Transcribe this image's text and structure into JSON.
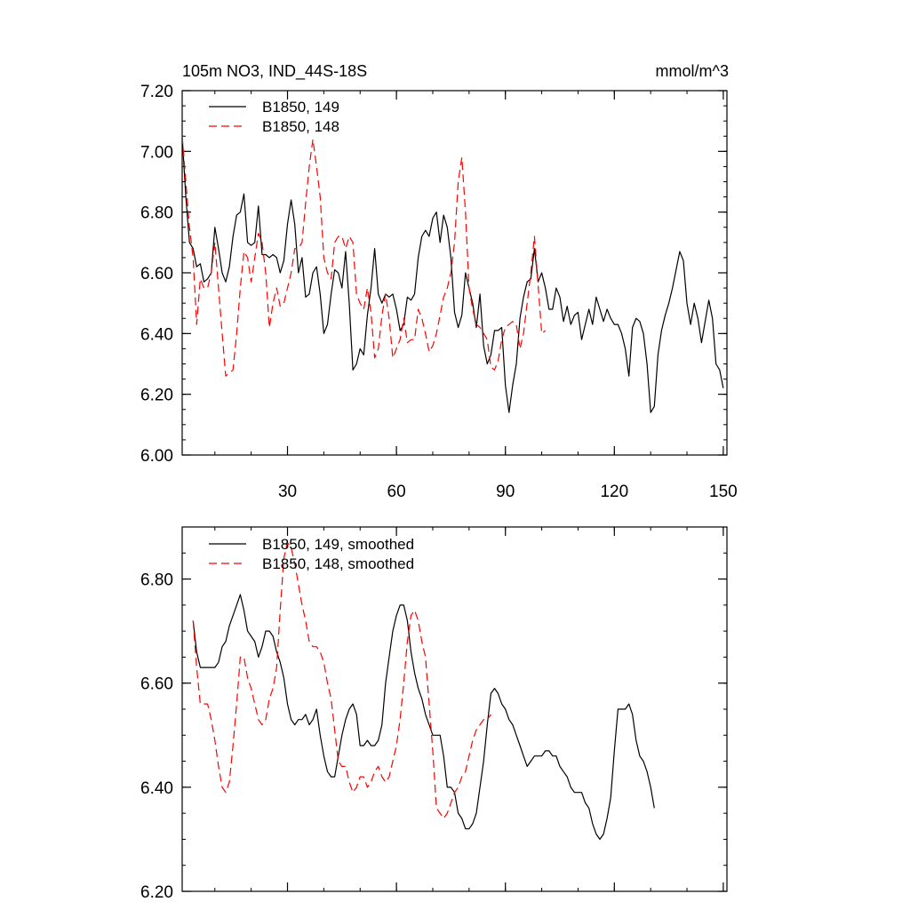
{
  "chart_data": [
    {
      "type": "line",
      "title": "105m NO3, IND_44S-18S",
      "units": "mmol/m^3",
      "xlim": [
        1,
        151
      ],
      "ylim": [
        6.0,
        7.2
      ],
      "xticks": [
        30,
        60,
        90,
        120,
        150
      ],
      "yticks": [
        6.0,
        6.2,
        6.4,
        6.6,
        6.8,
        7.0,
        7.2
      ],
      "ytick_labels": [
        "6.00",
        "6.20",
        "6.40",
        "6.60",
        "6.80",
        "7.00",
        "7.20"
      ],
      "legend": "top-left",
      "series": [
        {
          "name": "B1850, 149",
          "color": "#000000",
          "dash": "solid",
          "x_start": 1,
          "values": [
            7.05,
            6.85,
            6.7,
            6.68,
            6.62,
            6.63,
            6.57,
            6.58,
            6.6,
            6.75,
            6.68,
            6.6,
            6.57,
            6.62,
            6.72,
            6.79,
            6.8,
            6.86,
            6.7,
            6.69,
            6.7,
            6.82,
            6.66,
            6.66,
            6.65,
            6.66,
            6.65,
            6.6,
            6.64,
            6.76,
            6.84,
            6.76,
            6.6,
            6.65,
            6.52,
            6.53,
            6.6,
            6.62,
            6.53,
            6.4,
            6.43,
            6.53,
            6.61,
            6.6,
            6.55,
            6.67,
            6.5,
            6.28,
            6.3,
            6.35,
            6.33,
            6.46,
            6.55,
            6.68,
            6.53,
            6.5,
            6.53,
            6.52,
            6.53,
            6.48,
            6.41,
            6.43,
            6.52,
            6.51,
            6.53,
            6.65,
            6.72,
            6.74,
            6.72,
            6.78,
            6.8,
            6.7,
            6.79,
            6.75,
            6.65,
            6.47,
            6.42,
            6.46,
            6.6,
            6.55,
            6.5,
            6.42,
            6.53,
            6.36,
            6.3,
            6.33,
            6.41,
            6.41,
            6.42,
            6.23,
            6.14,
            6.23,
            6.3,
            6.45,
            6.52,
            6.57,
            6.58,
            6.68,
            6.57,
            6.6,
            6.55,
            6.48,
            6.48,
            6.55,
            6.52,
            6.44,
            6.49,
            6.43,
            6.46,
            6.47,
            6.38,
            6.43,
            6.48,
            6.43,
            6.52,
            6.48,
            6.44,
            6.48,
            6.45,
            6.43,
            6.43,
            6.4,
            6.35,
            6.26,
            6.42,
            6.45,
            6.44,
            6.4,
            6.3,
            6.14,
            6.16,
            6.33,
            6.41,
            6.46,
            6.5,
            6.55,
            6.61,
            6.67,
            6.64,
            6.5,
            6.43,
            6.5,
            6.45,
            6.37,
            6.44,
            6.51,
            6.45,
            6.3,
            6.28,
            6.22
          ]
        },
        {
          "name": "B1850, 148",
          "color": "#ff0000",
          "dash": "dashed",
          "x_start": 1,
          "values": [
            7.05,
            6.9,
            6.75,
            6.65,
            6.43,
            6.58,
            6.55,
            6.55,
            6.6,
            6.7,
            6.55,
            6.4,
            6.26,
            6.27,
            6.28,
            6.4,
            6.55,
            6.67,
            6.65,
            6.57,
            6.65,
            6.73,
            6.7,
            6.6,
            6.42,
            6.5,
            6.55,
            6.49,
            6.5,
            6.55,
            6.6,
            6.68,
            6.68,
            6.7,
            6.83,
            6.95,
            7.04,
            6.95,
            6.85,
            6.65,
            6.6,
            6.58,
            6.7,
            6.72,
            6.72,
            6.68,
            6.72,
            6.7,
            6.53,
            6.5,
            6.48,
            6.55,
            6.47,
            6.32,
            6.35,
            6.46,
            6.53,
            6.45,
            6.32,
            6.35,
            6.38,
            6.45,
            6.37,
            6.38,
            6.38,
            6.48,
            6.45,
            6.4,
            6.34,
            6.36,
            6.4,
            6.46,
            6.52,
            6.55,
            6.6,
            6.7,
            6.9,
            6.98,
            6.8,
            6.55,
            6.48,
            6.43,
            6.42,
            6.4,
            6.38,
            6.29,
            6.28,
            6.31,
            6.38,
            6.42,
            6.43,
            6.44,
            6.43,
            6.35,
            6.4,
            6.5,
            6.6,
            6.72,
            6.56,
            6.4,
            6.41
          ]
        }
      ]
    },
    {
      "type": "line",
      "xlim": [
        1,
        151
      ],
      "ylim": [
        6.2,
        6.9
      ],
      "xticks": [
        30,
        60,
        90,
        120,
        150
      ],
      "yticks": [
        6.2,
        6.4,
        6.6,
        6.8
      ],
      "ytick_labels": [
        "6.20",
        "6.40",
        "6.60",
        "6.80"
      ],
      "legend": "top-left",
      "series": [
        {
          "name": "B1850, 149, smoothed",
          "color": "#000000",
          "dash": "solid",
          "x_start": 4,
          "values": [
            6.72,
            6.66,
            6.63,
            6.63,
            6.63,
            6.63,
            6.63,
            6.64,
            6.67,
            6.68,
            6.71,
            6.73,
            6.75,
            6.77,
            6.74,
            6.7,
            6.69,
            6.68,
            6.65,
            6.67,
            6.7,
            6.7,
            6.69,
            6.66,
            6.64,
            6.61,
            6.56,
            6.53,
            6.52,
            6.53,
            6.53,
            6.54,
            6.52,
            6.53,
            6.55,
            6.5,
            6.46,
            6.43,
            6.42,
            6.42,
            6.46,
            6.5,
            6.53,
            6.55,
            6.56,
            6.54,
            6.48,
            6.48,
            6.49,
            6.48,
            6.48,
            6.49,
            6.52,
            6.6,
            6.65,
            6.7,
            6.73,
            6.75,
            6.75,
            6.72,
            6.66,
            6.62,
            6.59,
            6.57,
            6.54,
            6.52,
            6.5,
            6.5,
            6.5,
            6.46,
            6.4,
            6.4,
            6.39,
            6.35,
            6.34,
            6.32,
            6.32,
            6.33,
            6.35,
            6.4,
            6.45,
            6.52,
            6.58,
            6.59,
            6.58,
            6.56,
            6.55,
            6.53,
            6.52,
            6.5,
            6.48,
            6.46,
            6.44,
            6.45,
            6.46,
            6.46,
            6.46,
            6.47,
            6.47,
            6.46,
            6.46,
            6.44,
            6.43,
            6.42,
            6.4,
            6.39,
            6.39,
            6.39,
            6.37,
            6.36,
            6.33,
            6.31,
            6.3,
            6.31,
            6.34,
            6.38,
            6.47,
            6.55,
            6.55,
            6.55,
            6.56,
            6.54,
            6.49,
            6.46,
            6.45,
            6.43,
            6.4,
            6.36
          ]
        },
        {
          "name": "B1850, 148, smoothed",
          "color": "#ff0000",
          "dash": "dashed",
          "x_start": 4,
          "values": [
            6.72,
            6.63,
            6.56,
            6.56,
            6.56,
            6.53,
            6.49,
            6.44,
            6.4,
            6.39,
            6.41,
            6.48,
            6.56,
            6.65,
            6.65,
            6.61,
            6.59,
            6.56,
            6.53,
            6.52,
            6.53,
            6.57,
            6.59,
            6.63,
            6.74,
            6.84,
            6.87,
            6.86,
            6.83,
            6.79,
            6.75,
            6.72,
            6.68,
            6.67,
            6.67,
            6.66,
            6.64,
            6.6,
            6.57,
            6.51,
            6.45,
            6.44,
            6.44,
            6.41,
            6.39,
            6.4,
            6.42,
            6.42,
            6.4,
            6.41,
            6.43,
            6.44,
            6.42,
            6.41,
            6.42,
            6.45,
            6.48,
            6.53,
            6.6,
            6.68,
            6.73,
            6.74,
            6.72,
            6.68,
            6.65,
            6.56,
            6.47,
            6.36,
            6.35,
            6.34,
            6.35,
            6.37,
            6.39,
            6.4,
            6.42,
            6.43,
            6.46,
            6.49,
            6.51,
            6.52,
            6.53,
            6.53,
            6.54
          ]
        }
      ]
    }
  ]
}
